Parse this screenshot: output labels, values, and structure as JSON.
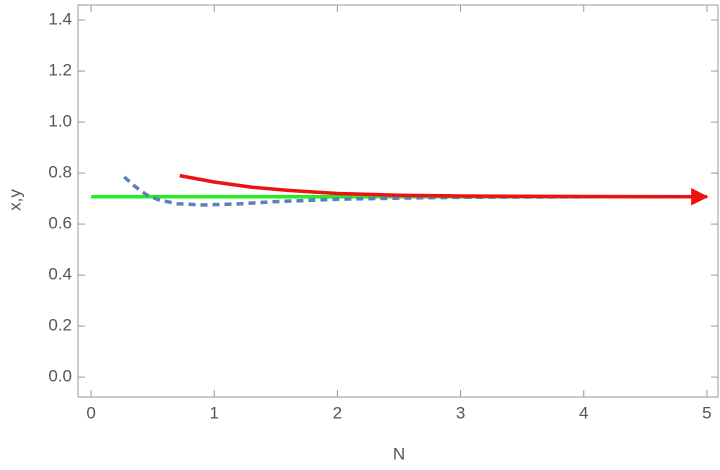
{
  "chart_data": {
    "type": "line",
    "xlabel": "N",
    "ylabel": "x,y",
    "xlim": [
      -0.106,
      5.09
    ],
    "ylim": [
      -0.078,
      1.459
    ],
    "xticks": [
      0,
      1,
      2,
      3,
      4,
      5
    ],
    "yticks": [
      {
        "value": 0,
        "label": "0.0"
      },
      0.2,
      0.4,
      0.6,
      0.8,
      {
        "value": 1,
        "label": "1.0"
      },
      1.2,
      1.4
    ],
    "grid": false,
    "series": [
      {
        "color": "#22ee22",
        "dash": false,
        "arrow": false,
        "x": [
          0,
          5
        ],
        "values": [
          0.707,
          0.707
        ]
      },
      {
        "color": "#5b7fc0",
        "dash": true,
        "arrow": false,
        "x": [
          0.27,
          0.35,
          0.45,
          0.55,
          0.7,
          0.9,
          1.2,
          1.5,
          2,
          2.5,
          3,
          4,
          5
        ],
        "values": [
          0.785,
          0.75,
          0.715,
          0.695,
          0.68,
          0.675,
          0.679,
          0.688,
          0.697,
          0.702,
          0.705,
          0.707,
          0.707
        ]
      },
      {
        "color": "#ee1111",
        "dash": false,
        "arrow": true,
        "x": [
          0.72,
          1,
          1.3,
          1.6,
          2,
          2.5,
          3,
          4,
          5
        ],
        "values": [
          0.79,
          0.765,
          0.745,
          0.732,
          0.72,
          0.713,
          0.71,
          0.708,
          0.707
        ]
      }
    ]
  }
}
